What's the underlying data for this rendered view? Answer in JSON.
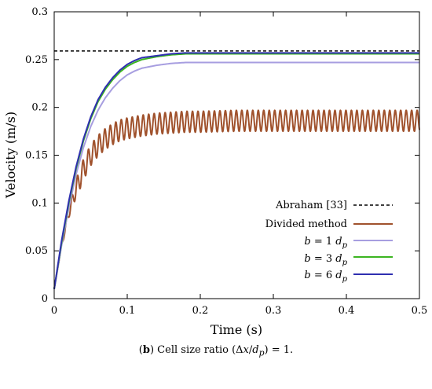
{
  "chart_data": {
    "type": "line",
    "title": "",
    "xlabel": "Time (s)",
    "ylabel": "Velocity (m/s)",
    "xlim": [
      0,
      0.5
    ],
    "ylim": [
      0,
      0.3
    ],
    "x_ticks": [
      "0",
      "0.1",
      "0.2",
      "0.3",
      "0.4",
      "0.5"
    ],
    "y_ticks": [
      "0",
      "0.05",
      "0.1",
      "0.15",
      "0.2",
      "0.25",
      "0.3"
    ],
    "grid": false,
    "legend_position": "bottom-right",
    "series": [
      {
        "name": "Abraham [33]",
        "color": "#000000",
        "style": "dashed",
        "x": [
          0,
          0.5
        ],
        "y": [
          0.259,
          0.259
        ]
      },
      {
        "name": "Divided method",
        "color": "#a0522d",
        "style": "solid",
        "x": [
          0.0,
          0.01,
          0.02,
          0.03,
          0.04,
          0.05,
          0.06,
          0.07,
          0.08,
          0.09,
          0.1,
          0.12,
          0.14,
          0.16,
          0.18,
          0.2,
          0.25,
          0.3,
          0.35,
          0.4,
          0.45,
          0.5
        ],
        "y": [
          0.01,
          0.055,
          0.09,
          0.115,
          0.135,
          0.15,
          0.16,
          0.167,
          0.172,
          0.176,
          0.178,
          0.181,
          0.183,
          0.184,
          0.185,
          0.185,
          0.186,
          0.186,
          0.186,
          0.186,
          0.186,
          0.186
        ],
        "oscillation": {
          "amplitude": 0.011,
          "period": 0.0075
        }
      },
      {
        "name": "b = 1 d_p",
        "color": "#a79ee0",
        "style": "solid",
        "x": [
          0.0,
          0.01,
          0.02,
          0.03,
          0.04,
          0.05,
          0.06,
          0.07,
          0.08,
          0.09,
          0.1,
          0.11,
          0.12,
          0.14,
          0.16,
          0.18,
          0.2,
          0.25,
          0.3,
          0.4,
          0.5
        ],
        "y": [
          0.01,
          0.055,
          0.095,
          0.13,
          0.158,
          0.18,
          0.197,
          0.21,
          0.22,
          0.228,
          0.234,
          0.238,
          0.241,
          0.244,
          0.246,
          0.247,
          0.247,
          0.247,
          0.247,
          0.247,
          0.247
        ]
      },
      {
        "name": "b = 3 d_p",
        "color": "#3cb521",
        "style": "solid",
        "x": [
          0.0,
          0.01,
          0.02,
          0.03,
          0.04,
          0.05,
          0.06,
          0.07,
          0.08,
          0.09,
          0.1,
          0.11,
          0.12,
          0.14,
          0.16,
          0.18,
          0.2,
          0.25,
          0.3,
          0.4,
          0.5
        ],
        "y": [
          0.01,
          0.058,
          0.1,
          0.136,
          0.165,
          0.188,
          0.206,
          0.219,
          0.229,
          0.237,
          0.243,
          0.247,
          0.25,
          0.253,
          0.255,
          0.256,
          0.256,
          0.256,
          0.256,
          0.256,
          0.256
        ]
      },
      {
        "name": "b = 6 d_p",
        "color": "#2f2fb0",
        "style": "solid",
        "x": [
          0.0,
          0.01,
          0.02,
          0.03,
          0.04,
          0.05,
          0.06,
          0.07,
          0.08,
          0.09,
          0.1,
          0.11,
          0.12,
          0.14,
          0.16,
          0.18,
          0.2,
          0.25,
          0.3,
          0.4,
          0.5
        ],
        "y": [
          0.01,
          0.06,
          0.102,
          0.138,
          0.167,
          0.19,
          0.208,
          0.221,
          0.231,
          0.239,
          0.245,
          0.249,
          0.252,
          0.254,
          0.256,
          0.257,
          0.257,
          0.257,
          0.257,
          0.257,
          0.257
        ]
      }
    ]
  },
  "legend_labels": {
    "abraham": "Abraham [33]",
    "divided": "Divided method",
    "b1_prefix": "b",
    "b1_mid": " = 1 ",
    "b1_suffix": "d",
    "b1_sub": "p",
    "b3_prefix": "b",
    "b3_mid": " = 3 ",
    "b3_suffix": "d",
    "b3_sub": "p",
    "b6_prefix": "b",
    "b6_mid": " = 6 ",
    "b6_suffix": "d",
    "b6_sub": "p"
  },
  "caption": {
    "label": "b",
    "text": " Cell size ratio (Δ",
    "x": "x",
    "slash": "/",
    "d": "d",
    "sub": "p",
    "end": ") = 1."
  }
}
